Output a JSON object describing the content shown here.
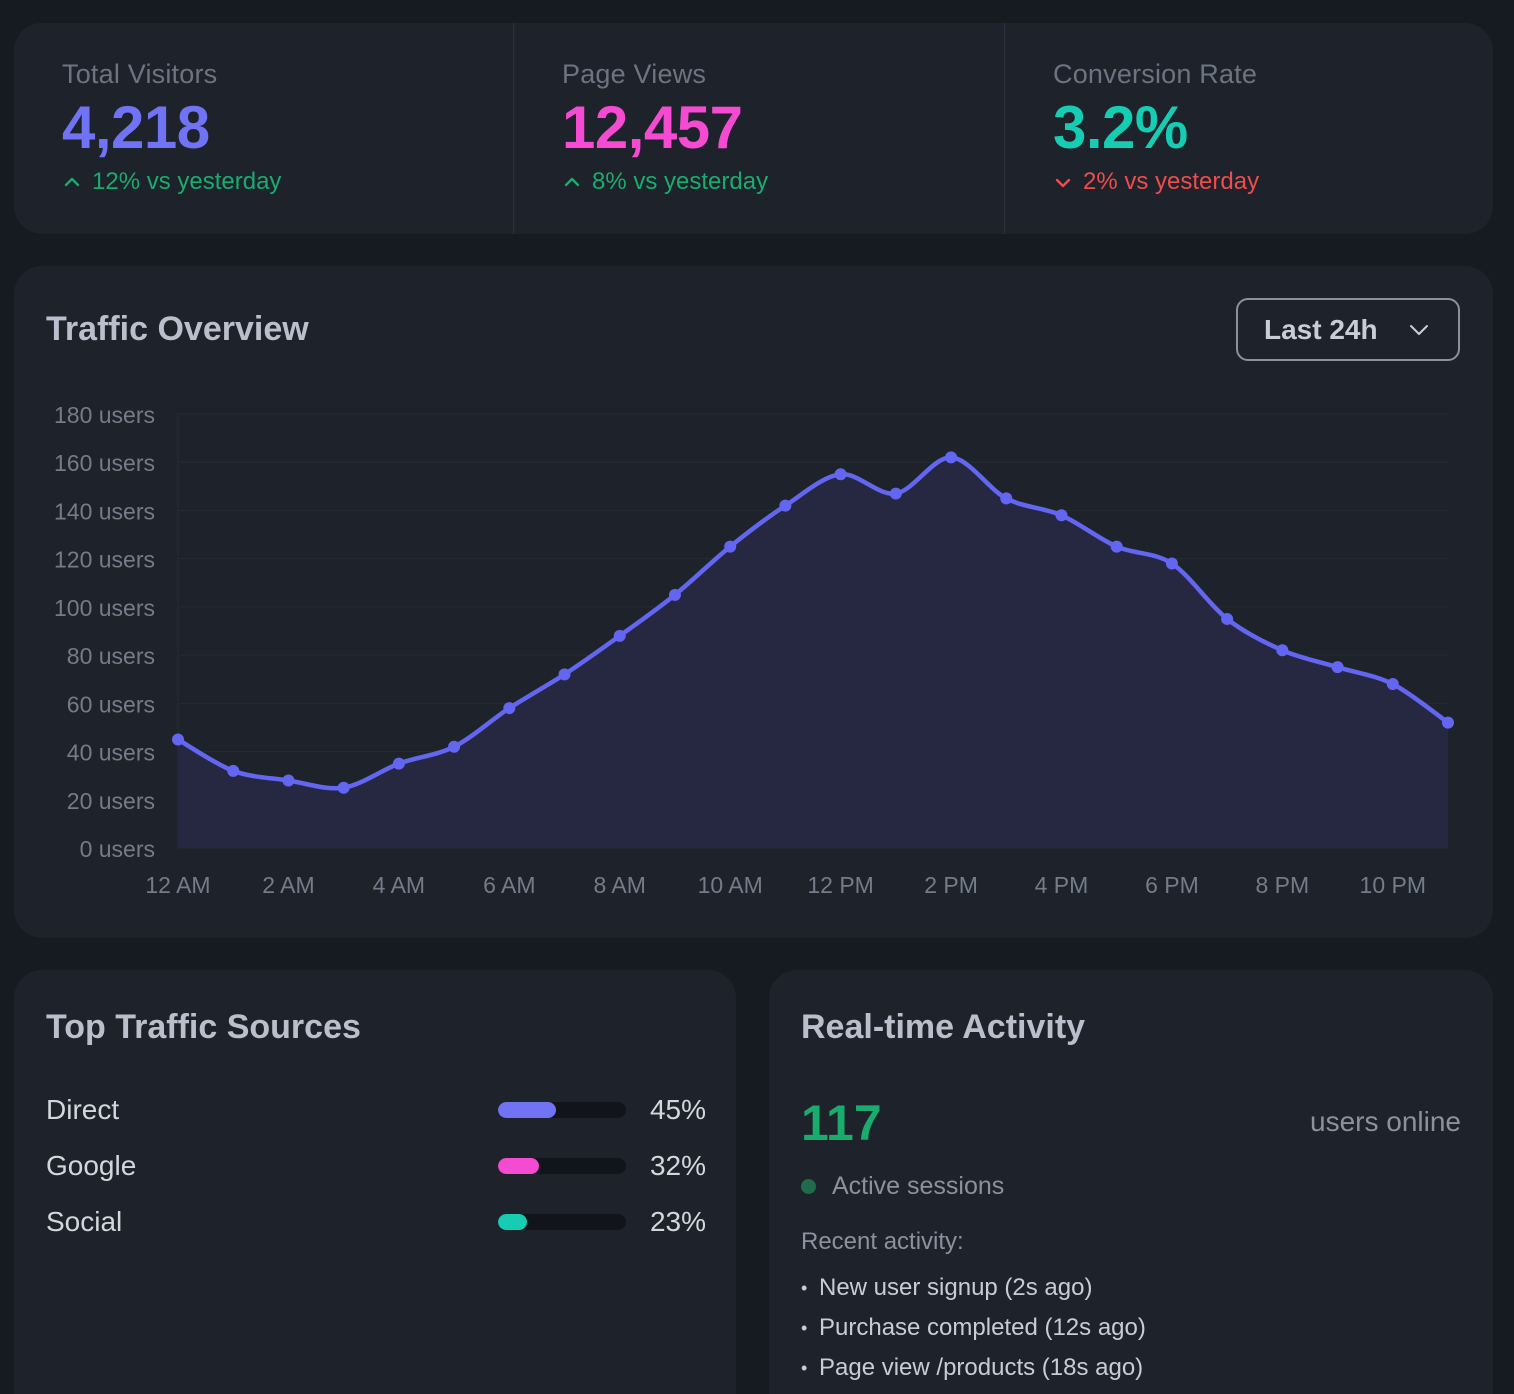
{
  "stats": [
    {
      "label": "Total Visitors",
      "value": "4,218",
      "change": "12% vs yesterday",
      "direction": "up",
      "value_color": "#7173f5"
    },
    {
      "label": "Page Views",
      "value": "12,457",
      "change": "8% vs yesterday",
      "direction": "up",
      "value_color": "#f54ad2"
    },
    {
      "label": "Conversion Rate",
      "value": "3.2%",
      "change": "2% vs yesterday",
      "direction": "down",
      "value_color": "#16cdb3"
    }
  ],
  "colors": {
    "up": "#1aab6e",
    "down": "#ef4c4c",
    "accent": "#6366f1"
  },
  "traffic": {
    "title": "Traffic Overview",
    "range_label": "Last 24h"
  },
  "chart_data": {
    "type": "area",
    "title": "Traffic Overview",
    "x": [
      "12 AM",
      "1 AM",
      "2 AM",
      "3 AM",
      "4 AM",
      "5 AM",
      "6 AM",
      "7 AM",
      "8 AM",
      "9 AM",
      "10 AM",
      "11 AM",
      "12 PM",
      "1 PM",
      "2 PM",
      "3 PM",
      "4 PM",
      "5 PM",
      "6 PM",
      "7 PM",
      "8 PM",
      "9 PM",
      "10 PM",
      "11 PM"
    ],
    "values": [
      45,
      32,
      28,
      25,
      35,
      42,
      58,
      72,
      88,
      105,
      125,
      142,
      155,
      147,
      162,
      145,
      138,
      125,
      118,
      95,
      82,
      75,
      68,
      52
    ],
    "xtick_labels": [
      "12 AM",
      "2 AM",
      "4 AM",
      "6 AM",
      "8 AM",
      "10 AM",
      "12 PM",
      "2 PM",
      "4 PM",
      "6 PM",
      "8 PM",
      "10 PM"
    ],
    "ytick_labels": [
      "0 users",
      "20 users",
      "40 users",
      "60 users",
      "80 users",
      "100 users",
      "120 users",
      "140 users",
      "160 users",
      "180 users"
    ],
    "ylim": [
      0,
      180
    ],
    "series_name": "users",
    "grid": true
  },
  "sources": {
    "title": "Top Traffic Sources",
    "items": [
      {
        "name": "Direct",
        "percent_label": "45%",
        "percent": 45,
        "color": "#7173f5"
      },
      {
        "name": "Google",
        "percent_label": "32%",
        "percent": 32,
        "color": "#f54ad2"
      },
      {
        "name": "Social",
        "percent_label": "23%",
        "percent": 23,
        "color": "#16cdb3"
      }
    ]
  },
  "activity": {
    "title": "Real-time Activity",
    "online_count": "117",
    "online_label": "users online",
    "sessions_label": "Active sessions",
    "recent_title": "Recent activity:",
    "recent": [
      "New user signup (2s ago)",
      "Purchase completed (12s ago)",
      "Page view /products (18s ago)"
    ]
  }
}
